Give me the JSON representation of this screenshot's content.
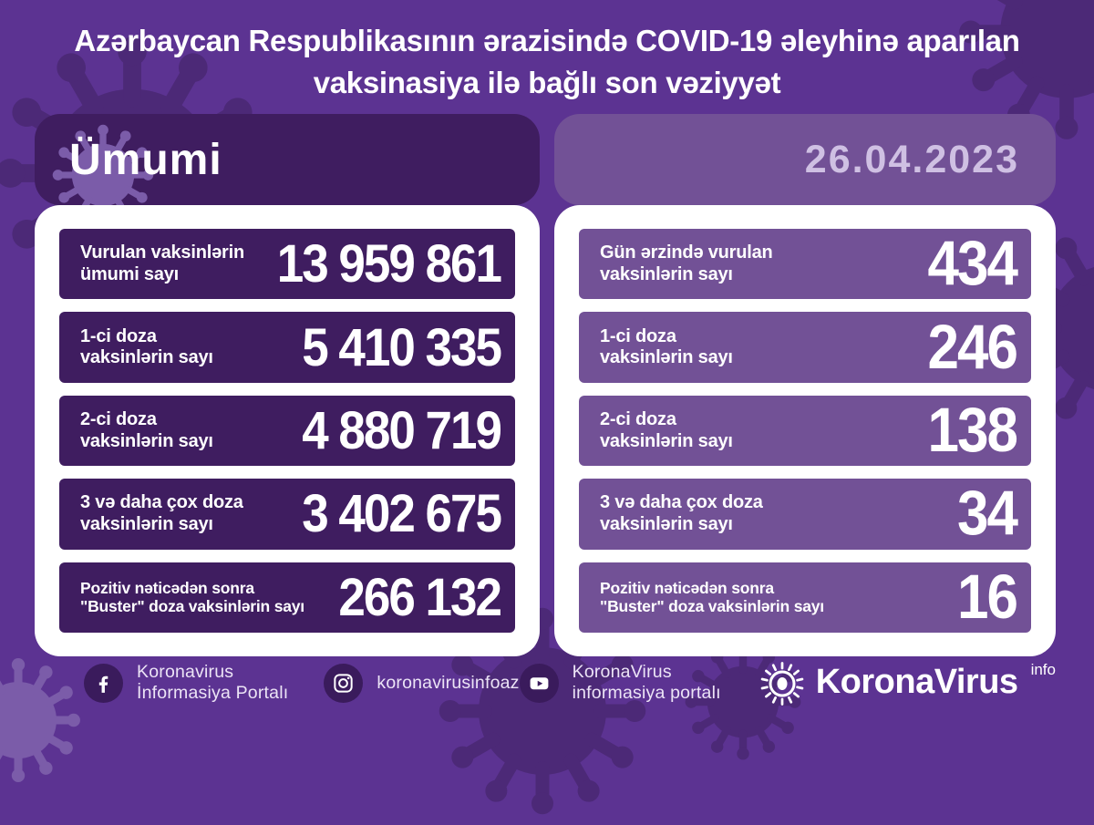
{
  "title": "Azərbaycan Respublikasının ərazisində COVID-19 əleyhinə aparılan\nvaksinasiya ilə bağlı son vəziyyət",
  "left_panel": {
    "header": "Ümumi",
    "rows": [
      {
        "label": "Vurulan vaksinlərin\nümumi sayı",
        "value": "13 959 861"
      },
      {
        "label": "1-ci doza\nvaksinlərin sayı",
        "value": "5 410 335"
      },
      {
        "label": "2-ci doza\nvaksinlərin sayı",
        "value": "4 880 719"
      },
      {
        "label": "3 və daha çox doza\nvaksinlərin sayı",
        "value": "3 402 675"
      },
      {
        "label": "Pozitiv nəticədən sonra\n\"Buster\" doza vaksinlərin sayı",
        "value": "266 132"
      }
    ]
  },
  "right_panel": {
    "header": "26.04.2023",
    "rows": [
      {
        "label": "Gün ərzində vurulan\nvaksinlərin sayı",
        "value": "434"
      },
      {
        "label": "1-ci doza\nvaksinlərin sayı",
        "value": "246"
      },
      {
        "label": "2-ci doza\nvaksinlərin sayı",
        "value": "138"
      },
      {
        "label": "3 və daha çox doza\nvaksinlərin sayı",
        "value": "34"
      },
      {
        "label": "Pozitiv nəticədən sonra\n\"Buster\" doza vaksinlərin sayı",
        "value": "16"
      }
    ]
  },
  "footer": {
    "social": [
      {
        "network": "facebook",
        "icon": "facebook-icon",
        "label": "Koronavirus İnformasiya Portalı"
      },
      {
        "network": "instagram",
        "icon": "instagram-icon",
        "label": "koronavirusinfoaz"
      },
      {
        "network": "youtube",
        "icon": "youtube-icon",
        "label": "KoronaVirus informasiya portalı"
      }
    ],
    "logo": {
      "text": "KoronaVirus",
      "superscript": "info"
    }
  },
  "colors": {
    "bg": "#5c3392",
    "panel_dark": "#3f1d60",
    "panel_medium": "#725196",
    "date_text": "#cfc0e3",
    "card": "#ffffff",
    "footer_icon_bg": "#3a1b5c",
    "text_light": "#ece4f6",
    "decor_dark": "#4c2977",
    "decor_light": "#7b5ca9"
  },
  "chart_data": {
    "type": "table",
    "title": "Azərbaycan Respublikasının ərazisində COVID-19 əleyhinə aparılan vaksinasiya ilə bağlı son vəziyyət",
    "date": "26.04.2023",
    "series": [
      {
        "name": "Ümumi",
        "rows": [
          [
            "Vurulan vaksinlərin ümumi sayı",
            13959861
          ],
          [
            "1-ci doza vaksinlərin sayı",
            5410335
          ],
          [
            "2-ci doza vaksinlərin sayı",
            4880719
          ],
          [
            "3 və daha çox doza vaksinlərin sayı",
            3402675
          ],
          [
            "Pozitiv nəticədən sonra \"Buster\" doza vaksinlərin sayı",
            266132
          ]
        ]
      },
      {
        "name": "26.04.2023",
        "rows": [
          [
            "Gün ərzində vurulan vaksinlərin sayı",
            434
          ],
          [
            "1-ci doza vaksinlərin sayı",
            246
          ],
          [
            "2-ci doza vaksinlərin sayı",
            138
          ],
          [
            "3 və daha çox doza vaksinlərin sayı",
            34
          ],
          [
            "Pozitiv nəticədən sonra \"Buster\" doza vaksinlərin sayı",
            16
          ]
        ]
      }
    ]
  }
}
